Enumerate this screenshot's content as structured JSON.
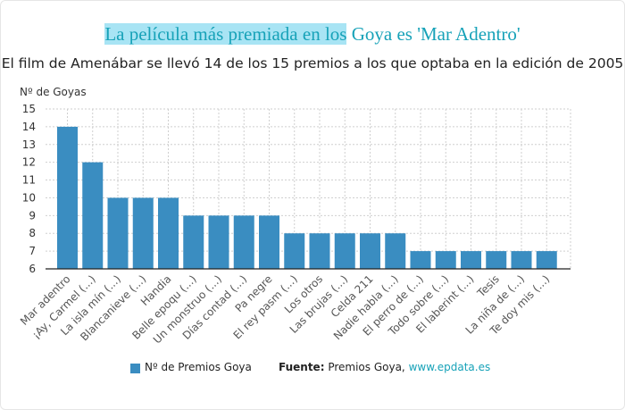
{
  "colors": {
    "bar": "#3a8dc1",
    "grid": "#cfcfcf",
    "title": "#17a2b8",
    "highlight": "#a8e4f4"
  },
  "title_highlighted": "La película más premiada en los",
  "title_rest": " Goya es 'Mar Adentro'",
  "subtitle": "El film de Amenábar se llevó 14 de los 15 premios a los que optaba en la edición de 2005",
  "legend": {
    "label": "Nº de Premios Goya"
  },
  "source": {
    "key": "Fuente:",
    "text": " Premios Goya, ",
    "link": "www.epdata.es"
  },
  "chart_data": {
    "type": "bar",
    "ylabel": "Nº de Goyas",
    "ylim": [
      6,
      15
    ],
    "yticks": [
      6,
      7,
      8,
      9,
      10,
      11,
      12,
      13,
      14,
      15
    ],
    "grid": true,
    "legend_position": "bottom",
    "categories": [
      "Mar adentro",
      "¡Ay, Carmel (...)",
      "La isla mín (...)",
      "Blancanieve (...)",
      "Handia",
      "Belle epoqu (...)",
      "Un monstruo (...)",
      "Días contad (...)",
      "Pa negre",
      "El rey pasm (...)",
      "Los otros",
      "Las brujas (...)",
      "Celda 211",
      "Nadie habla (...)",
      "El perro de (...)",
      "Todo sobre (...)",
      "El laberint (...)",
      "Tesis",
      "La niña de (...)",
      "Te doy mis (...)"
    ],
    "series": [
      {
        "name": "Nº de Premios Goya",
        "values": [
          14,
          12,
          10,
          10,
          10,
          9,
          9,
          9,
          9,
          8,
          8,
          8,
          8,
          8,
          7,
          7,
          7,
          7,
          7,
          7
        ]
      }
    ]
  }
}
